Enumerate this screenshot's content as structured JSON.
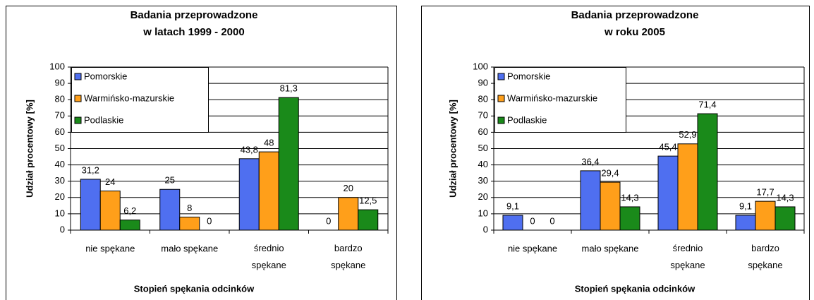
{
  "chart_data": [
    {
      "type": "bar",
      "title": [
        "Badania przeprowadzone",
        "w latach 1999 - 2000"
      ],
      "x_label": "Stopień spękania odcinków",
      "y_label": "Udział procentowy [%]",
      "categories": [
        "nie spękane",
        "mało spękane",
        "średnio\nspękane",
        "bardzo\nspękane"
      ],
      "series": [
        {
          "name": "Pomorskie",
          "color": "#4f6ff0",
          "values": [
            31.2,
            25,
            43.8,
            0
          ],
          "value_labels": [
            "31,2",
            "25",
            "43,8",
            "0"
          ]
        },
        {
          "name": "Warmińsko-mazurskie",
          "color": "#ff9f1a",
          "values": [
            24,
            8,
            48,
            20
          ],
          "value_labels": [
            "24",
            "8",
            "48",
            "20"
          ]
        },
        {
          "name": "Podlaskie",
          "color": "#1a8a1a",
          "values": [
            6.2,
            0,
            81.3,
            12.5
          ],
          "value_labels": [
            "6,2",
            "0",
            "81,3",
            "12,5"
          ]
        }
      ],
      "ylim": [
        0,
        100
      ],
      "yticks": [
        0,
        10,
        20,
        30,
        40,
        50,
        60,
        70,
        80,
        90,
        100
      ],
      "grid": true,
      "legend": "upper left"
    },
    {
      "type": "bar",
      "title": [
        "Badania przeprowadzone",
        "w roku 2005"
      ],
      "x_label": "Stopień spękania odcinków",
      "y_label": "Udział procentowy [%]",
      "categories": [
        "nie spękane",
        "mało spękane",
        "średnio\nspękane",
        "bardzo\nspękane"
      ],
      "series": [
        {
          "name": "Pomorskie",
          "color": "#4f6ff0",
          "values": [
            9.1,
            36.4,
            45.4,
            9.1
          ],
          "value_labels": [
            "9,1",
            "36,4",
            "45,4",
            "9,1"
          ]
        },
        {
          "name": "Warmińsko-mazurskie",
          "color": "#ff9f1a",
          "values": [
            0,
            29.4,
            52.9,
            17.7
          ],
          "value_labels": [
            "0",
            "29,4",
            "52,9",
            "17,7"
          ]
        },
        {
          "name": "Podlaskie",
          "color": "#1a8a1a",
          "values": [
            0,
            14.3,
            71.4,
            14.3
          ],
          "value_labels": [
            "0",
            "14,3",
            "71,4",
            "14,3"
          ]
        }
      ],
      "ylim": [
        0,
        100
      ],
      "yticks": [
        0,
        10,
        20,
        30,
        40,
        50,
        60,
        70,
        80,
        90,
        100
      ],
      "grid": true,
      "legend": "upper left"
    }
  ]
}
